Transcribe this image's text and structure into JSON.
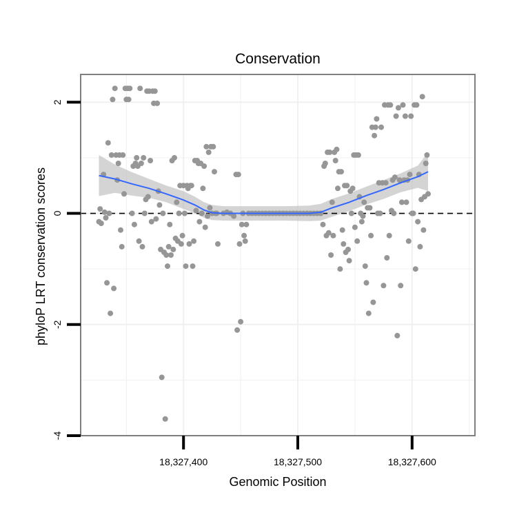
{
  "chart_data": {
    "type": "scatter",
    "title": "Conservation",
    "xlabel": "Genomic Position",
    "ylabel": "phyloP LRT conservation scores",
    "xlim": [
      18327310,
      18327655
    ],
    "ylim": [
      -4,
      2.5
    ],
    "x_ticks": [
      {
        "value": 18327400,
        "label": "18,327,400"
      },
      {
        "value": 18327500,
        "label": "18,327,500"
      },
      {
        "value": 18327600,
        "label": "18,327,600"
      }
    ],
    "y_ticks": [
      {
        "value": -4,
        "label": "-4"
      },
      {
        "value": -2,
        "label": "-2"
      },
      {
        "value": 0,
        "label": "0"
      },
      {
        "value": 2,
        "label": "2"
      }
    ],
    "reference_line": {
      "y": 0,
      "style": "dashed"
    },
    "grid": true,
    "colors": {
      "points": "#969696",
      "smooth": "#3366ff",
      "ribbon": "#bdbdbd",
      "panel_border": "#7f7f7f",
      "grid": "#f0f0f0"
    },
    "points": [
      [
        18327326,
        -0.15
      ],
      [
        18327327,
        0.08
      ],
      [
        18327328,
        -0.18
      ],
      [
        18327330,
        0.7
      ],
      [
        18327331,
        0.02
      ],
      [
        18327332,
        -0.08
      ],
      [
        18327333,
        -1.25
      ],
      [
        18327334,
        1.27
      ],
      [
        18327335,
        0.0
      ],
      [
        18327336,
        -1.8
      ],
      [
        18327337,
        1.05
      ],
      [
        18327338,
        2.05
      ],
      [
        18327339,
        -1.35
      ],
      [
        18327340,
        2.25
      ],
      [
        18327341,
        1.05
      ],
      [
        18327342,
        0.6
      ],
      [
        18327343,
        0.9
      ],
      [
        18327344,
        1.05
      ],
      [
        18327345,
        -0.3
      ],
      [
        18327346,
        -0.6
      ],
      [
        18327347,
        1.05
      ],
      [
        18327348,
        0.35
      ],
      [
        18327349,
        2.25
      ],
      [
        18327350,
        2.05
      ],
      [
        18327351,
        2.25
      ],
      [
        18327352,
        2.05
      ],
      [
        18327353,
        2.25
      ],
      [
        18327355,
        0.0
      ],
      [
        18327356,
        0.85
      ],
      [
        18327357,
        -0.2
      ],
      [
        18327358,
        0.9
      ],
      [
        18327359,
        1.0
      ],
      [
        18327360,
        0.85
      ],
      [
        18327361,
        -0.5
      ],
      [
        18327362,
        2.25
      ],
      [
        18327363,
        0.9
      ],
      [
        18327364,
        -0.6
      ],
      [
        18327365,
        1.0
      ],
      [
        18327366,
        0.0
      ],
      [
        18327367,
        0.25
      ],
      [
        18327368,
        2.2
      ],
      [
        18327369,
        0.3
      ],
      [
        18327370,
        2.2
      ],
      [
        18327371,
        0.95
      ],
      [
        18327372,
        -0.15
      ],
      [
        18327373,
        2.2
      ],
      [
        18327374,
        1.98
      ],
      [
        18327375,
        2.2
      ],
      [
        18327376,
        -0.1
      ],
      [
        18327377,
        1.98
      ],
      [
        18327378,
        0.4
      ],
      [
        18327379,
        0.15
      ],
      [
        18327380,
        -0.65
      ],
      [
        18327381,
        -2.95
      ],
      [
        18327382,
        0.0
      ],
      [
        18327383,
        -0.7
      ],
      [
        18327384,
        -3.7
      ],
      [
        18327385,
        -0.75
      ],
      [
        18327386,
        -0.95
      ],
      [
        18327387,
        -0.6
      ],
      [
        18327388,
        -0.2
      ],
      [
        18327389,
        -0.75
      ],
      [
        18327390,
        0.95
      ],
      [
        18327391,
        -0.65
      ],
      [
        18327392,
        1.0
      ],
      [
        18327393,
        -0.45
      ],
      [
        18327394,
        0.2
      ],
      [
        18327395,
        -0.5
      ],
      [
        18327396,
        0.0
      ],
      [
        18327397,
        0.5
      ],
      [
        18327398,
        -0.55
      ],
      [
        18327399,
        -0.4
      ],
      [
        18327400,
        0.5
      ],
      [
        18327401,
        0.0
      ],
      [
        18327402,
        -0.95
      ],
      [
        18327403,
        0.5
      ],
      [
        18327404,
        0.45
      ],
      [
        18327405,
        -0.55
      ],
      [
        18327406,
        0.5
      ],
      [
        18327407,
        0.5
      ],
      [
        18327408,
        -0.95
      ],
      [
        18327409,
        -0.5
      ],
      [
        18327410,
        0.95
      ],
      [
        18327411,
        0.05
      ],
      [
        18327412,
        0.95
      ],
      [
        18327413,
        0.9
      ],
      [
        18327414,
        -0.15
      ],
      [
        18327415,
        0.9
      ],
      [
        18327416,
        0.0
      ],
      [
        18327417,
        0.45
      ],
      [
        18327418,
        0.85
      ],
      [
        18327419,
        -0.25
      ],
      [
        18327420,
        1.2
      ],
      [
        18327421,
        -0.05
      ],
      [
        18327422,
        1.1
      ],
      [
        18327423,
        0.1
      ],
      [
        18327424,
        1.2
      ],
      [
        18327425,
        0.0
      ],
      [
        18327426,
        1.2
      ],
      [
        18327427,
        0.75
      ],
      [
        18327428,
        0.0
      ],
      [
        18327429,
        0.0
      ],
      [
        18327430,
        -0.55
      ],
      [
        18327435,
        0.0
      ],
      [
        18327438,
        0.02
      ],
      [
        18327441,
        0.0
      ],
      [
        18327444,
        -0.05
      ],
      [
        18327446,
        0.7
      ],
      [
        18327447,
        -2.1
      ],
      [
        18327448,
        0.7
      ],
      [
        18327449,
        -0.55
      ],
      [
        18327450,
        -1.95
      ],
      [
        18327451,
        -0.2
      ],
      [
        18327452,
        0.0
      ],
      [
        18327453,
        -0.4
      ],
      [
        18327454,
        -0.5
      ],
      [
        18327455,
        -0.2
      ],
      [
        18327457,
        0.0
      ],
      [
        18327460,
        0.0
      ],
      [
        18327463,
        0.0
      ],
      [
        18327466,
        0.0
      ],
      [
        18327469,
        0.0
      ],
      [
        18327472,
        0.0
      ],
      [
        18327475,
        0.0
      ],
      [
        18327478,
        0.0
      ],
      [
        18327481,
        0.0
      ],
      [
        18327484,
        0.0
      ],
      [
        18327487,
        0.0
      ],
      [
        18327490,
        0.0
      ],
      [
        18327493,
        0.0
      ],
      [
        18327496,
        0.0
      ],
      [
        18327499,
        0.0
      ],
      [
        18327502,
        0.0
      ],
      [
        18327505,
        0.0
      ],
      [
        18327508,
        0.0
      ],
      [
        18327511,
        0.0
      ],
      [
        18327514,
        0.0
      ],
      [
        18327517,
        0.0
      ],
      [
        18327520,
        0.0
      ],
      [
        18327522,
        -0.2
      ],
      [
        18327523,
        0.85
      ],
      [
        18327524,
        0.9
      ],
      [
        18327525,
        -0.4
      ],
      [
        18327526,
        1.1
      ],
      [
        18327527,
        -0.35
      ],
      [
        18327528,
        1.1
      ],
      [
        18327529,
        -0.75
      ],
      [
        18327530,
        0.2
      ],
      [
        18327531,
        -0.4
      ],
      [
        18327532,
        1.1
      ],
      [
        18327533,
        0.95
      ],
      [
        18327534,
        1.15
      ],
      [
        18327535,
        0.45
      ],
      [
        18327536,
        0.75
      ],
      [
        18327537,
        -1.0
      ],
      [
        18327538,
        0.75
      ],
      [
        18327539,
        -0.3
      ],
      [
        18327540,
        -0.55
      ],
      [
        18327541,
        0.5
      ],
      [
        18327542,
        -0.7
      ],
      [
        18327543,
        0.5
      ],
      [
        18327544,
        -0.65
      ],
      [
        18327545,
        -0.85
      ],
      [
        18327546,
        0.4
      ],
      [
        18327547,
        0.0
      ],
      [
        18327548,
        0.45
      ],
      [
        18327549,
        1.05
      ],
      [
        18327550,
        -0.25
      ],
      [
        18327551,
        1.05
      ],
      [
        18327552,
        -0.5
      ],
      [
        18327553,
        1.05
      ],
      [
        18327554,
        0.3
      ],
      [
        18327555,
        0.0
      ],
      [
        18327556,
        -0.15
      ],
      [
        18327557,
        -0.05
      ],
      [
        18327558,
        0.2
      ],
      [
        18327559,
        -0.95
      ],
      [
        18327560,
        -1.25
      ],
      [
        18327561,
        0.1
      ],
      [
        18327562,
        -1.8
      ],
      [
        18327563,
        0.1
      ],
      [
        18327564,
        -0.4
      ],
      [
        18327565,
        1.55
      ],
      [
        18327566,
        -1.6
      ],
      [
        18327567,
        1.4
      ],
      [
        18327568,
        1.55
      ],
      [
        18327569,
        1.7
      ],
      [
        18327570,
        0.0
      ],
      [
        18327571,
        0.55
      ],
      [
        18327572,
        0.0
      ],
      [
        18327573,
        1.55
      ],
      [
        18327574,
        0.55
      ],
      [
        18327575,
        -1.3
      ],
      [
        18327576,
        1.95
      ],
      [
        18327577,
        0.55
      ],
      [
        18327578,
        -0.8
      ],
      [
        18327579,
        1.95
      ],
      [
        18327580,
        -0.4
      ],
      [
        18327581,
        1.95
      ],
      [
        18327582,
        0.05
      ],
      [
        18327583,
        0.6
      ],
      [
        18327584,
        0.0
      ],
      [
        18327585,
        0.65
      ],
      [
        18327586,
        1.75
      ],
      [
        18327587,
        -2.2
      ],
      [
        18327588,
        1.9
      ],
      [
        18327589,
        0.6
      ],
      [
        18327590,
        -1.3
      ],
      [
        18327591,
        0.2
      ],
      [
        18327592,
        1.95
      ],
      [
        18327593,
        0.6
      ],
      [
        18327594,
        1.75
      ],
      [
        18327595,
        0.2
      ],
      [
        18327596,
        0.6
      ],
      [
        18327597,
        -0.5
      ],
      [
        18327598,
        0.7
      ],
      [
        18327599,
        1.75
      ],
      [
        18327600,
        0.0
      ],
      [
        18327601,
        0.0
      ],
      [
        18327602,
        1.95
      ],
      [
        18327603,
        -1.0
      ],
      [
        18327604,
        1.95
      ],
      [
        18327605,
        -0.15
      ],
      [
        18327606,
        0.7
      ],
      [
        18327607,
        -0.6
      ],
      [
        18327608,
        0.25
      ],
      [
        18327609,
        2.1
      ],
      [
        18327610,
        -0.3
      ],
      [
        18327611,
        0.3
      ],
      [
        18327612,
        0.9
      ],
      [
        18327613,
        1.05
      ],
      [
        18327614,
        0.35
      ]
    ],
    "smooth_line": [
      [
        18327326,
        0.68
      ],
      [
        18327340,
        0.62
      ],
      [
        18327355,
        0.53
      ],
      [
        18327370,
        0.45
      ],
      [
        18327385,
        0.35
      ],
      [
        18327400,
        0.24
      ],
      [
        18327410,
        0.15
      ],
      [
        18327418,
        0.06
      ],
      [
        18327425,
        0.01
      ],
      [
        18327435,
        0.0
      ],
      [
        18327450,
        0.0
      ],
      [
        18327470,
        0.0
      ],
      [
        18327490,
        0.0
      ],
      [
        18327510,
        0.0
      ],
      [
        18327520,
        0.02
      ],
      [
        18327530,
        0.1
      ],
      [
        18327545,
        0.2
      ],
      [
        18327560,
        0.32
      ],
      [
        18327575,
        0.43
      ],
      [
        18327590,
        0.55
      ],
      [
        18327605,
        0.66
      ],
      [
        18327614,
        0.75
      ]
    ],
    "confidence_band": {
      "upper": [
        [
          18327326,
          1.05
        ],
        [
          18327340,
          0.88
        ],
        [
          18327355,
          0.74
        ],
        [
          18327370,
          0.62
        ],
        [
          18327385,
          0.5
        ],
        [
          18327400,
          0.4
        ],
        [
          18327410,
          0.3
        ],
        [
          18327418,
          0.2
        ],
        [
          18327425,
          0.15
        ],
        [
          18327435,
          0.13
        ],
        [
          18327450,
          0.13
        ],
        [
          18327470,
          0.13
        ],
        [
          18327490,
          0.13
        ],
        [
          18327510,
          0.14
        ],
        [
          18327520,
          0.17
        ],
        [
          18327530,
          0.26
        ],
        [
          18327545,
          0.36
        ],
        [
          18327560,
          0.48
        ],
        [
          18327575,
          0.6
        ],
        [
          18327590,
          0.72
        ],
        [
          18327605,
          0.86
        ],
        [
          18327614,
          1.1
        ]
      ],
      "lower": [
        [
          18327326,
          0.31
        ],
        [
          18327340,
          0.37
        ],
        [
          18327355,
          0.32
        ],
        [
          18327370,
          0.28
        ],
        [
          18327385,
          0.2
        ],
        [
          18327400,
          0.08
        ],
        [
          18327410,
          0.0
        ],
        [
          18327418,
          -0.08
        ],
        [
          18327425,
          -0.12
        ],
        [
          18327435,
          -0.13
        ],
        [
          18327450,
          -0.13
        ],
        [
          18327470,
          -0.13
        ],
        [
          18327490,
          -0.13
        ],
        [
          18327510,
          -0.14
        ],
        [
          18327520,
          -0.13
        ],
        [
          18327530,
          -0.06
        ],
        [
          18327545,
          0.04
        ],
        [
          18327560,
          0.16
        ],
        [
          18327575,
          0.26
        ],
        [
          18327590,
          0.38
        ],
        [
          18327605,
          0.46
        ],
        [
          18327614,
          0.4
        ]
      ]
    }
  }
}
